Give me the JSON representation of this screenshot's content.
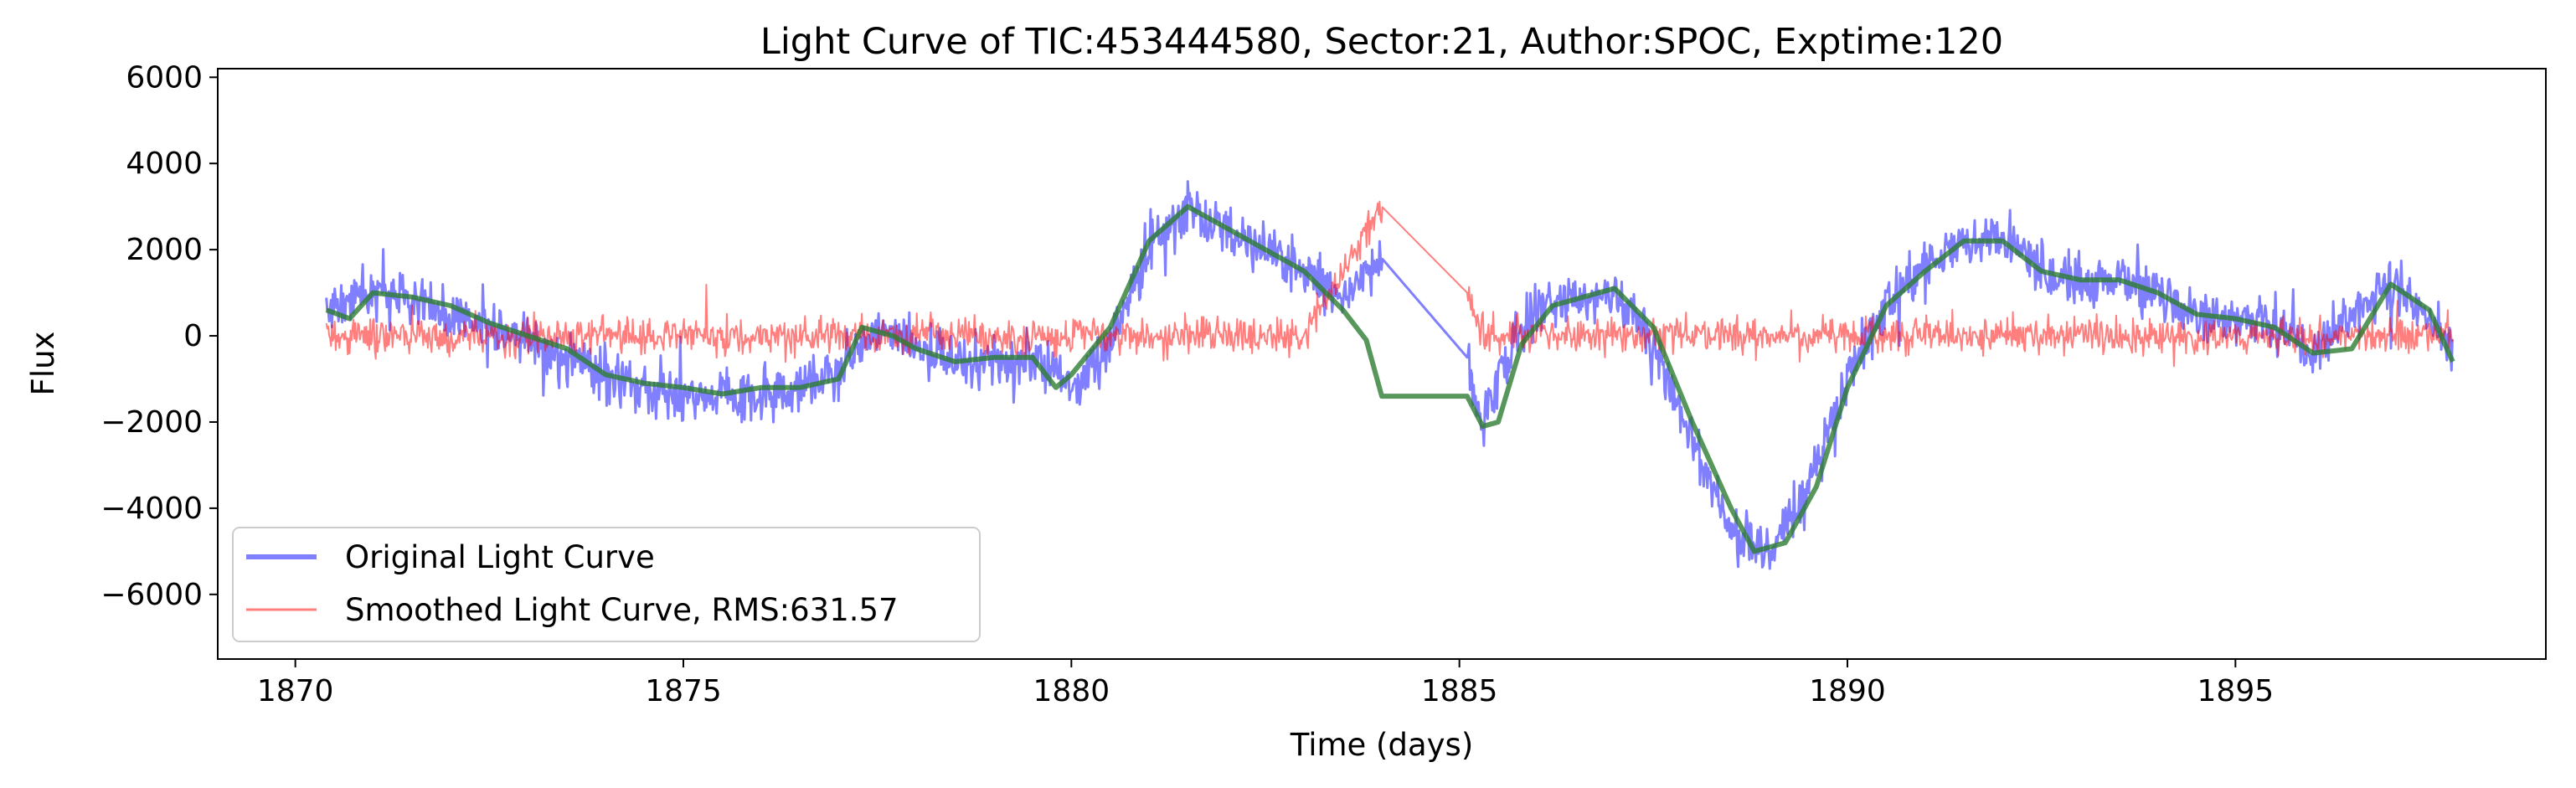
{
  "chart_data": {
    "type": "line",
    "title": "Light Curve of TIC:453444580, Sector:21, Author:SPOC, Exptime:120",
    "xlabel": "Time (days)",
    "ylabel": "Flux",
    "xlim": [
      1869,
      1899
    ],
    "ylim": [
      -7500,
      6200
    ],
    "xticks": [
      1870,
      1875,
      1880,
      1885,
      1890,
      1895
    ],
    "yticks": [
      -6000,
      -4000,
      -2000,
      0,
      2000,
      4000,
      6000
    ],
    "grid": false,
    "legend_position": "lower-left",
    "gap": [
      1884.0,
      1885.1
    ],
    "series": [
      {
        "name": "Original Light Curve",
        "color": "#0000ff",
        "opacity": 0.5,
        "noise_amplitude": 1000,
        "x": [
          1870.4,
          1871.0,
          1871.5,
          1872.0,
          1872.5,
          1873.0,
          1873.5,
          1874.0,
          1874.5,
          1875.0,
          1875.5,
          1876.0,
          1876.5,
          1877.0,
          1877.5,
          1878.0,
          1878.5,
          1879.0,
          1879.5,
          1880.0,
          1880.5,
          1881.0,
          1881.5,
          1882.0,
          1882.5,
          1883.0,
          1883.5,
          1884.0,
          1885.1,
          1885.3,
          1885.6,
          1886.0,
          1886.5,
          1887.0,
          1887.5,
          1888.0,
          1888.5,
          1889.0,
          1889.5,
          1890.0,
          1890.5,
          1891.0,
          1891.5,
          1892.0,
          1892.5,
          1893.0,
          1893.5,
          1894.0,
          1894.5,
          1895.0,
          1895.5,
          1896.0,
          1896.5,
          1897.0,
          1897.5,
          1897.8
        ],
        "y": [
          600,
          1000,
          900,
          500,
          200,
          -100,
          -500,
          -1000,
          -1100,
          -1300,
          -1400,
          -1300,
          -1200,
          -800,
          200,
          -300,
          -600,
          -600,
          -500,
          -1200,
          -200,
          2000,
          3000,
          2500,
          2000,
          1500,
          800,
          1800,
          -500,
          -2100,
          -500,
          700,
          800,
          1100,
          -200,
          -2500,
          -4500,
          -5000,
          -3500,
          -1000,
          800,
          1500,
          2200,
          2200,
          1500,
          1300,
          1300,
          1000,
          500,
          400,
          200,
          -400,
          500,
          1200,
          500,
          -500
        ]
      },
      {
        "name": "Smoothed Light Curve, RMS:631.57",
        "color": "#ff0000",
        "opacity": 0.5,
        "noise_amplitude": 700,
        "x": [
          1870.4,
          1871.0,
          1872.0,
          1873.0,
          1874.0,
          1875.0,
          1876.0,
          1877.0,
          1878.0,
          1879.0,
          1880.0,
          1881.0,
          1882.0,
          1883.0,
          1884.0,
          1885.1,
          1885.3,
          1886.0,
          1887.0,
          1888.0,
          1889.0,
          1890.0,
          1891.0,
          1892.0,
          1893.0,
          1894.0,
          1895.0,
          1896.0,
          1897.0,
          1897.8
        ],
        "y": [
          0,
          0,
          0,
          0,
          0,
          0,
          0,
          0,
          0,
          0,
          0,
          0,
          0,
          0,
          3000,
          1000,
          0,
          0,
          0,
          0,
          0,
          0,
          0,
          0,
          0,
          0,
          0,
          0,
          0,
          0
        ]
      },
      {
        "name": "",
        "color": "#2e7d32",
        "opacity": 0.8,
        "noise_amplitude": 0,
        "x": [
          1870.4,
          1870.7,
          1871.0,
          1871.5,
          1872.0,
          1872.5,
          1873.0,
          1873.5,
          1874.0,
          1874.5,
          1875.0,
          1875.5,
          1876.0,
          1876.5,
          1877.0,
          1877.3,
          1877.7,
          1878.0,
          1878.5,
          1879.0,
          1879.5,
          1879.8,
          1880.0,
          1880.5,
          1881.0,
          1881.5,
          1882.0,
          1882.5,
          1883.0,
          1883.5,
          1883.8,
          1884.0,
          1885.1,
          1885.3,
          1885.5,
          1885.8,
          1886.2,
          1886.6,
          1887.0,
          1887.5,
          1888.0,
          1888.5,
          1888.8,
          1889.2,
          1889.6,
          1890.0,
          1890.5,
          1891.0,
          1891.5,
          1892.0,
          1892.5,
          1893.0,
          1893.5,
          1894.0,
          1894.5,
          1895.0,
          1895.5,
          1896.0,
          1896.5,
          1897.0,
          1897.5,
          1897.8
        ],
        "y": [
          600,
          400,
          1000,
          900,
          700,
          300,
          0,
          -300,
          -900,
          -1100,
          -1200,
          -1350,
          -1200,
          -1200,
          -1000,
          200,
          0,
          -300,
          -600,
          -500,
          -500,
          -1200,
          -900,
          200,
          2200,
          3000,
          2500,
          2000,
          1500,
          600,
          -100,
          -1400,
          -1400,
          -2100,
          -2000,
          -200,
          700,
          900,
          1100,
          200,
          -2000,
          -4000,
          -5000,
          -4800,
          -3500,
          -1200,
          700,
          1500,
          2200,
          2200,
          1500,
          1300,
          1300,
          1000,
          500,
          400,
          200,
          -400,
          -300,
          1200,
          600,
          -600
        ]
      }
    ]
  }
}
